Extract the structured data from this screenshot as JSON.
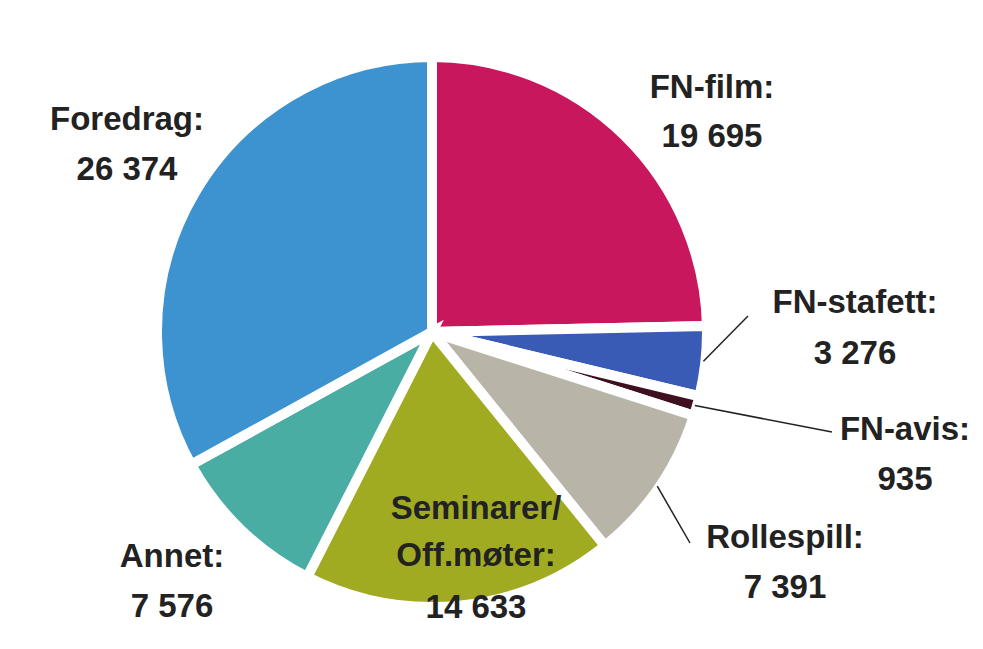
{
  "chart_data": {
    "type": "pie",
    "categories": [
      "FN-film:",
      "FN-stafett:",
      "FN-avis:",
      "Rollespill:",
      "Seminarer/Off.møter:",
      "Annet:",
      "Foredrag:"
    ],
    "values": [
      19695,
      3276,
      935,
      7391,
      14633,
      7576,
      26374
    ],
    "value_labels": [
      "19 695",
      "3 276",
      "935",
      "7 391",
      "14 633",
      "7 576",
      "26 374"
    ],
    "colors": [
      "#c8175d",
      "#3a5bb5",
      "#3e1020",
      "#b8b5a8",
      "#a0ab22",
      "#4aada3",
      "#3d93d0"
    ],
    "data_labels": true
  }
}
